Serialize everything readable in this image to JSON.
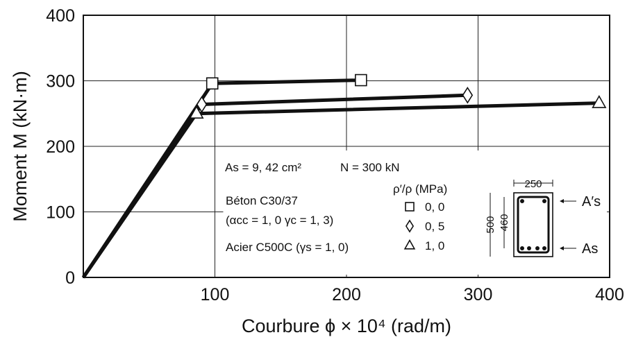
{
  "chart_data": {
    "type": "line",
    "title": "",
    "xlabel": "Courbure ϕ × 10⁴ (rad/m)",
    "ylabel": "Moment M (kN·m)",
    "xlim": [
      0,
      400
    ],
    "ylim": [
      0,
      400
    ],
    "x_ticks": [
      "100",
      "200",
      "300",
      "400"
    ],
    "y_ticks": [
      "0",
      "100",
      "200",
      "300",
      "400"
    ],
    "grid": true,
    "series": [
      {
        "name": "0, 0",
        "marker": "square",
        "x": [
          0,
          98,
          211
        ],
        "y": [
          0,
          296,
          301
        ]
      },
      {
        "name": "0, 5",
        "marker": "diamond",
        "x": [
          0,
          90,
          292
        ],
        "y": [
          0,
          264,
          278
        ]
      },
      {
        "name": "1, 0",
        "marker": "triangle",
        "x": [
          0,
          86,
          392
        ],
        "y": [
          0,
          250,
          266
        ]
      }
    ],
    "annotations": {
      "as_line": "As = 9, 42 cm²",
      "n_line": "N = 300 kN",
      "beton_line": "Béton C30/37",
      "coeff_line": "(αcc = 1, 0    γc = 1, 3)",
      "acier_line": "Acier C500C (γs = 1, 0)",
      "legend_title": "ρ′/ρ (MPa)"
    },
    "section": {
      "width_label": "250",
      "height_label": "500",
      "depth_label": "460",
      "top_steel_label": "A′s",
      "bottom_steel_label": "As"
    }
  }
}
